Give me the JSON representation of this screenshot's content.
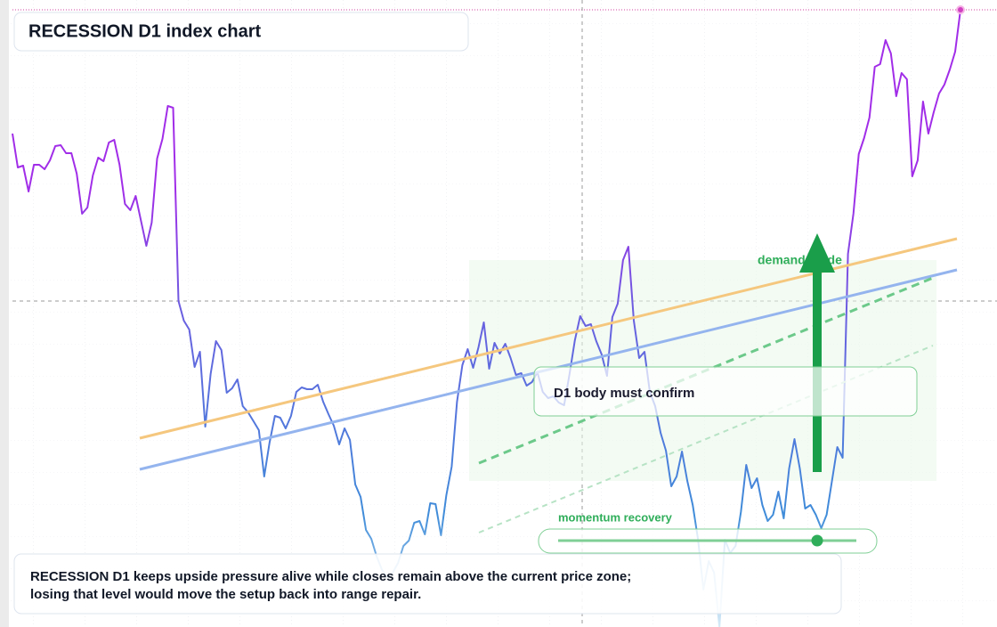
{
  "chart_data": {
    "type": "line",
    "title": "RECESSION D1 index chart",
    "values": [
      554,
      516,
      518,
      489,
      519,
      519,
      514,
      524,
      540,
      541,
      532,
      532,
      509,
      464,
      471,
      507,
      527,
      523,
      544,
      547,
      519,
      475,
      468,
      484,
      456,
      428,
      454,
      526,
      548,
      585,
      583,
      366,
      344,
      334,
      292,
      309,
      225,
      284,
      321,
      311,
      263,
      268,
      278,
      248,
      241,
      231,
      221,
      169,
      207,
      237,
      235,
      223,
      237,
      264,
      269,
      267,
      267,
      272,
      253,
      239,
      226,
      205,
      223,
      210,
      160,
      146,
      109,
      99,
      79,
      64,
      56,
      61,
      72,
      91,
      97,
      117,
      119,
      104,
      139,
      138,
      103,
      148,
      180,
      253,
      294,
      312,
      291,
      314,
      342,
      290,
      319,
      307,
      318,
      302,
      283,
      285,
      271,
      275,
      286,
      264,
      257,
      259,
      252,
      249,
      284,
      322,
      349,
      338,
      340,
      321,
      306,
      282,
      348,
      363,
      412,
      427,
      344,
      302,
      309,
      264,
      248,
      218,
      198,
      158,
      169,
      197,
      164,
      137,
      98,
      42,
      74,
      61,
      0,
      98,
      83,
      91,
      129,
      182,
      156,
      167,
      137,
      119,
      126,
      152,
      122,
      178,
      211,
      178,
      133,
      137,
      126,
      111,
      126,
      164,
      202,
      190,
      419,
      464,
      531,
      549,
      572,
      629,
      632,
      659,
      644,
      596,
      622,
      615,
      506,
      524,
      590,
      554,
      578,
      599,
      609,
      626,
      646,
      693
    ],
    "ylim": [
      0,
      704
    ],
    "colors": [
      "#a12de8",
      "#6a5fe0",
      "#3f8cd9",
      "#d6ebf7"
    ],
    "annotations": {
      "zone": "demand guide",
      "box": "D1 body must confirm",
      "momentum": "momentum recovery"
    },
    "note": [
      "RECESSION D1 keeps upside pressure alive while closes remain above the current price zone;",
      "losing that level would move the setup back into range repair."
    ]
  }
}
